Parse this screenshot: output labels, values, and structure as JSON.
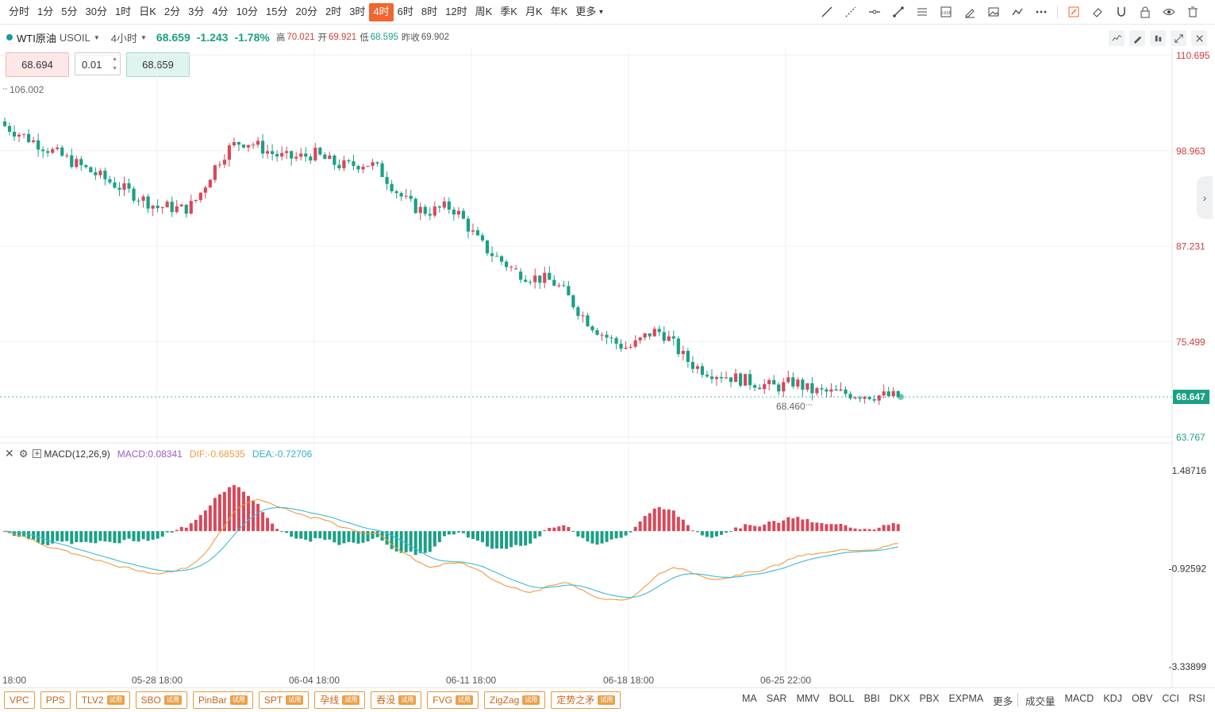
{
  "toolbar": {
    "periods": [
      "分时",
      "1分",
      "5分",
      "30分",
      "1时",
      "日K",
      "2分",
      "3分",
      "4分",
      "10分",
      "15分",
      "20分",
      "2时",
      "3时",
      "4时",
      "6时",
      "8时",
      "12时",
      "周K",
      "季K",
      "月K",
      "年K",
      "更多"
    ],
    "active_period": "4时",
    "tools": [
      "trend-line-icon",
      "ray-line-icon",
      "horizontal-line-icon",
      "segment-icon",
      "parallel-channel-icon",
      "fibonacci-icon",
      "brush-icon",
      "image-icon",
      "polyline-icon",
      "more-dots-icon",
      "edit-icon",
      "eraser-icon",
      "magnet-icon",
      "lock-icon",
      "eye-icon",
      "trash-icon"
    ],
    "fib_label": "0.618"
  },
  "symbol": {
    "name": "WTI原油",
    "code": "USOIL",
    "interval": "4小时",
    "price": "68.659",
    "change": "-1.243",
    "change_pct": "-1.78%",
    "high_label": "高",
    "high": "70.021",
    "open_label": "开",
    "open": "69.921",
    "low_label": "低",
    "low": "68.595",
    "prev_label": "昨收",
    "prev": "69.902"
  },
  "trade": {
    "sell": "68.694",
    "lot": "0.01",
    "buy": "68.659"
  },
  "price_axis": {
    "ticks": [
      "110.695",
      "98.963",
      "87.231",
      "75.499",
      "63.767"
    ],
    "current": "68.647",
    "max_label": "106.002",
    "min_label": "68.460"
  },
  "macd": {
    "title": "MACD(12,26,9)",
    "macd": "MACD:0.08341",
    "dif": "DIF:-0.68535",
    "dea": "DEA:-0.72706",
    "ticks": [
      "1.48716",
      "-0.92592",
      "-3.33899"
    ]
  },
  "time_axis": [
    "18:00",
    "05-28 18:00",
    "06-04 18:00",
    "06-11 18:00",
    "06-18 18:00",
    "06-25 22:00"
  ],
  "indicators_left": [
    {
      "label": "VPC",
      "trial": ""
    },
    {
      "label": "PPS",
      "trial": ""
    },
    {
      "label": "TLV2",
      "trial": "试用"
    },
    {
      "label": "SBO",
      "trial": "试用"
    },
    {
      "label": "PinBar",
      "trial": "试用"
    },
    {
      "label": "SPT",
      "trial": "试用"
    },
    {
      "label": "孕线",
      "trial": "试用"
    },
    {
      "label": "吞没",
      "trial": "试用"
    },
    {
      "label": "FVG",
      "trial": "试用"
    },
    {
      "label": "ZigZag",
      "trial": "试用"
    },
    {
      "label": "定势之矛",
      "trial": "试用"
    }
  ],
  "indicators_main": [
    "MA",
    "SAR",
    "MMV",
    "BOLL",
    "BBI",
    "DKX",
    "PBX",
    "EXPMA",
    "更多"
  ],
  "indicators_sub": [
    "成交量",
    "MACD",
    "KDJ",
    "OBV",
    "CCI",
    "RSI"
  ],
  "colors": {
    "up": "#d9485a",
    "down": "#1aa085",
    "dif": "#f09a3e",
    "dea": "#3dbad2",
    "accent": "#f0662e"
  },
  "chart_data": {
    "type": "candlestick",
    "title": "WTI原油 USOIL 4小时",
    "price_range": [
      63.767,
      110.695
    ],
    "trend_anchors": [
      {
        "x": "start",
        "price": 102.0
      },
      {
        "x": "05-28",
        "price": 92.0
      },
      {
        "x": "06-04",
        "price": 98.5
      },
      {
        "x": "06-11",
        "price": 88.0
      },
      {
        "x": "06-18",
        "price": 74.0
      },
      {
        "x": "06-25",
        "price": 69.5
      },
      {
        "x": "end",
        "price": 68.65
      }
    ],
    "macd_range": [
      -3.33899,
      1.48716
    ]
  }
}
